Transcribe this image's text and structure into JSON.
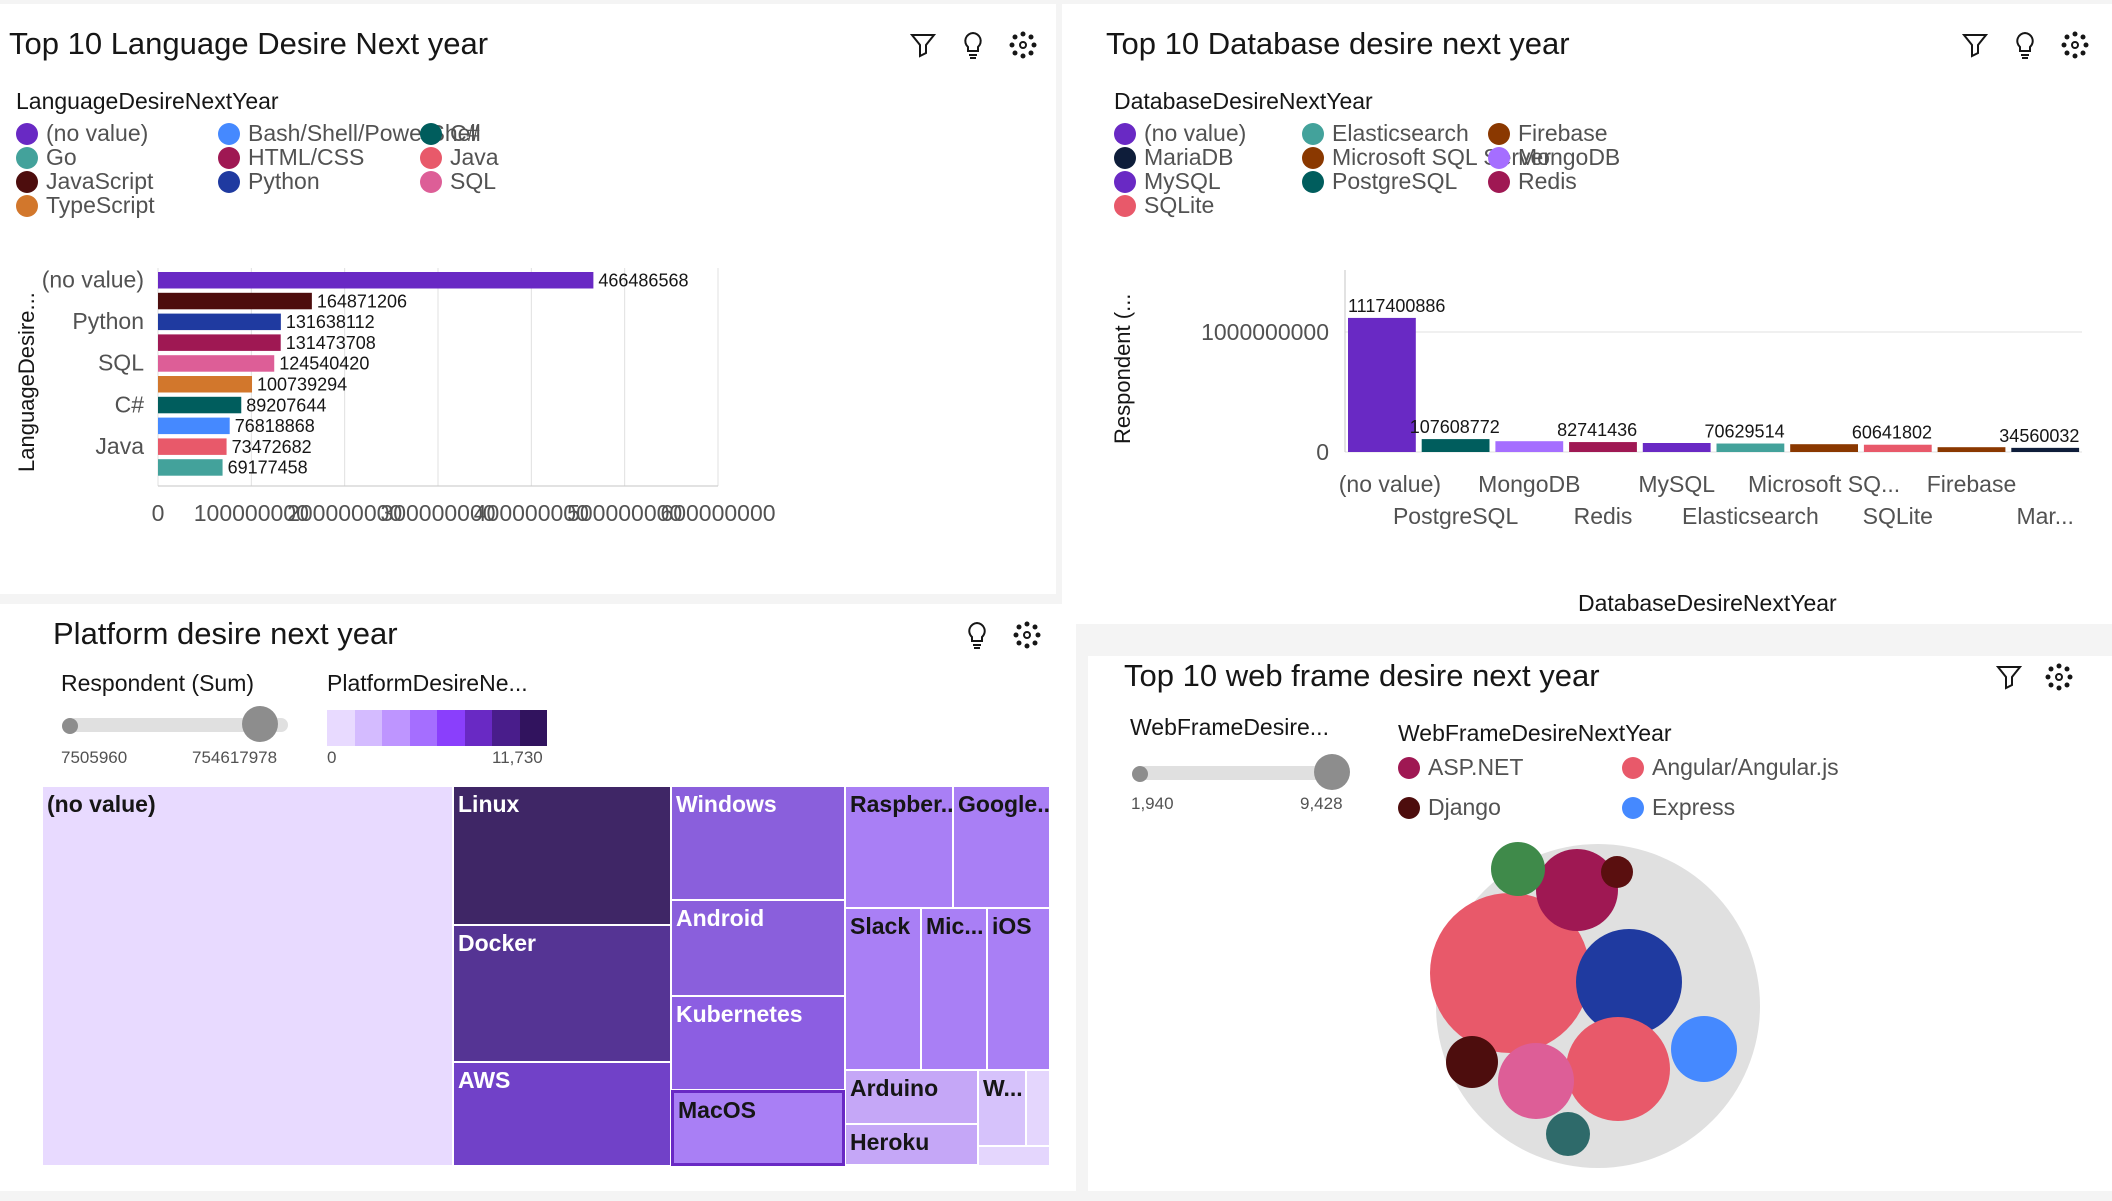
{
  "icons": {
    "filter": "filter-icon",
    "insight": "lightbulb-icon",
    "settings": "settings-icon"
  },
  "lang": {
    "title": "Top 10 Language Desire Next year",
    "legend_title": "LanguageDesireNextYear",
    "legend": [
      {
        "label": "(no value)",
        "color": "#6929c4"
      },
      {
        "label": "Bash/Shell/PowerShell",
        "color": "#4589ff"
      },
      {
        "label": "C#",
        "color": "#005d5d"
      },
      {
        "label": "Go",
        "color": "#43a29b"
      },
      {
        "label": "HTML/CSS",
        "color": "#9f1853"
      },
      {
        "label": "Java",
        "color": "#e8596a"
      },
      {
        "label": "JavaScript",
        "color": "#4d0d0d"
      },
      {
        "label": "Python",
        "color": "#1f3aa0"
      },
      {
        "label": "SQL",
        "color": "#dd5e97"
      },
      {
        "label": "TypeScript",
        "color": "#d2772c"
      }
    ],
    "y_axis_label": "LanguageDesire...",
    "chart_data": {
      "type": "bar",
      "orientation": "horizontal",
      "categories": [
        "(no value)",
        "JavaScript",
        "Python",
        "HTML/CSS",
        "SQL",
        "TypeScript",
        "C#",
        "Bash/Shell/PowerShell",
        "Java",
        "Go"
      ],
      "values": [
        466486568,
        164871206,
        131638112,
        131473708,
        124540420,
        100739294,
        89207644,
        76818868,
        73472682,
        69177458
      ],
      "colors": [
        "#6929c4",
        "#4d0d0d",
        "#1f3aa0",
        "#9f1853",
        "#dd5e97",
        "#d2772c",
        "#005d5d",
        "#4589ff",
        "#e8596a",
        "#43a29b"
      ],
      "value_labels": [
        "466486568",
        "164871206",
        "131638112",
        "131473708",
        "124540420",
        "100739294",
        "89207644",
        "76818868",
        "73472682",
        "69177458"
      ],
      "shown_category_labels": [
        "(no value)",
        "",
        "Python",
        "",
        "SQL",
        "",
        "C#",
        "",
        "Java",
        ""
      ],
      "xticks": [
        0,
        100000000,
        200000000,
        300000000,
        400000000,
        500000000,
        600000000
      ],
      "xtick_labels": [
        "0",
        "100000000",
        "200000000",
        "300000000",
        "400000000",
        "500000000",
        "600000000"
      ],
      "xlim": [
        0,
        600000000
      ],
      "xlabel": "",
      "ylabel": "LanguageDesire...",
      "grid": true
    }
  },
  "db": {
    "title": "Top 10 Database desire next year",
    "legend_title": "DatabaseDesireNextYear",
    "legend": [
      {
        "label": "(no value)",
        "color": "#6929c4"
      },
      {
        "label": "Elasticsearch",
        "color": "#43a29b"
      },
      {
        "label": "Firebase",
        "color": "#8a3800"
      },
      {
        "label": "MariaDB",
        "color": "#0e1d3a"
      },
      {
        "label": "Microsoft SQL Server",
        "color": "#8a3800"
      },
      {
        "label": "MongoDB",
        "color": "#a56eff"
      },
      {
        "label": "MySQL",
        "color": "#6929c4"
      },
      {
        "label": "PostgreSQL",
        "color": "#005d5d"
      },
      {
        "label": "Redis",
        "color": "#9f1853"
      },
      {
        "label": "SQLite",
        "color": "#e8596a"
      }
    ],
    "y_axis_label": "Respondent (...",
    "x_axis_label": "DatabaseDesireNextYear",
    "chart_data": {
      "type": "bar",
      "orientation": "vertical",
      "categories": [
        "(no value)",
        "PostgreSQL",
        "MongoDB",
        "Redis",
        "MySQL",
        "Elasticsearch",
        "Microsoft SQ...",
        "SQLite",
        "Firebase",
        "Mar..."
      ],
      "values": [
        1117400886,
        107608772,
        90000000,
        82741436,
        75000000,
        70629514,
        65000000,
        60641802,
        40000000,
        34560032
      ],
      "colors": [
        "#6929c4",
        "#005d5d",
        "#a56eff",
        "#9f1853",
        "#6929c4",
        "#43a29b",
        "#8a3800",
        "#e8596a",
        "#8a3800",
        "#0e1d3a"
      ],
      "value_labels": [
        "1117400886",
        "107608772",
        "",
        "82741436",
        "",
        "70629514",
        "",
        "60641802",
        "",
        "34560032"
      ],
      "yticks": [
        0,
        1000000000
      ],
      "ytick_labels": [
        "0",
        "1000000000"
      ],
      "ylim": [
        0,
        1500000000
      ],
      "xlabel": "DatabaseDesireNextYear",
      "ylabel": "Respondent (...",
      "grid": true
    }
  },
  "platform": {
    "title": "Platform desire next year",
    "size_legend": {
      "title": "Respondent (Sum)",
      "min": "7505960",
      "max": "754617978"
    },
    "color_legend": {
      "title": "PlatformDesireNe...",
      "min": "0",
      "max": "11,730",
      "swatches": [
        "#e8daff",
        "#d4bbff",
        "#be95ff",
        "#a56eff",
        "#8a3ffc",
        "#6929c4",
        "#491d8b",
        "#31135e"
      ]
    },
    "chart_data": {
      "type": "treemap",
      "cells": [
        {
          "label": "(no value)",
          "color": "#e8daff",
          "text": "#161616"
        },
        {
          "label": "Linux",
          "color": "#3f2666",
          "text": "#ffffff"
        },
        {
          "label": "Docker",
          "color": "#553494",
          "text": "#ffffff"
        },
        {
          "label": "AWS",
          "color": "#7141c8",
          "text": "#ffffff"
        },
        {
          "label": "Windows",
          "color": "#8a5fdc",
          "text": "#ffffff"
        },
        {
          "label": "Android",
          "color": "#8a5fdc",
          "text": "#ffffff"
        },
        {
          "label": "Kubernetes",
          "color": "#8c5ee2",
          "text": "#ffffff"
        },
        {
          "label": "MacOS",
          "color": "#a97ff5",
          "text": "#161616"
        },
        {
          "label": "Raspber...",
          "color": "#a97ff5",
          "text": "#161616"
        },
        {
          "label": "Google...",
          "color": "#a97ff5",
          "text": "#161616"
        },
        {
          "label": "Slack",
          "color": "#a97ff5",
          "text": "#161616"
        },
        {
          "label": "Mic...",
          "color": "#a97ff5",
          "text": "#161616"
        },
        {
          "label": "iOS",
          "color": "#a97ff5",
          "text": "#161616"
        },
        {
          "label": "Arduino",
          "color": "#c5a7f7",
          "text": "#161616"
        },
        {
          "label": "Heroku",
          "color": "#c5a7f7",
          "text": "#161616"
        },
        {
          "label": "W...",
          "color": "#d6c2fb",
          "text": "#161616"
        },
        {
          "label": "",
          "color": "#e4d6fd",
          "text": "#161616"
        },
        {
          "label": "",
          "color": "#e4d6fd",
          "text": "#161616"
        },
        {
          "label": "",
          "color": "#e4d6fd",
          "text": "#161616"
        }
      ]
    }
  },
  "web": {
    "title": "Top 10 web frame desire next year",
    "size_legend": {
      "title": "WebFrameDesire...",
      "min": "1,940",
      "max": "9,428"
    },
    "legend_title": "WebFrameDesireNextYear",
    "legend": [
      {
        "label": "ASP.NET",
        "color": "#9f1853"
      },
      {
        "label": "Angular/Angular.js",
        "color": "#e8596a"
      },
      {
        "label": "Django",
        "color": "#4d0d0d"
      },
      {
        "label": "Express",
        "color": "#4589ff"
      }
    ],
    "chart_data": {
      "type": "packed-bubble",
      "bubbles": [
        {
          "color": "#e8596a"
        },
        {
          "color": "#1f3aa0"
        },
        {
          "color": "#e8596a"
        },
        {
          "color": "#9f1853"
        },
        {
          "color": "#dd5e97"
        },
        {
          "color": "#4589ff"
        },
        {
          "color": "#4d0d0d"
        },
        {
          "color": "#3f8a4a"
        },
        {
          "color": "#2e6a6a"
        },
        {
          "color": "#5a0f0f"
        }
      ]
    }
  }
}
